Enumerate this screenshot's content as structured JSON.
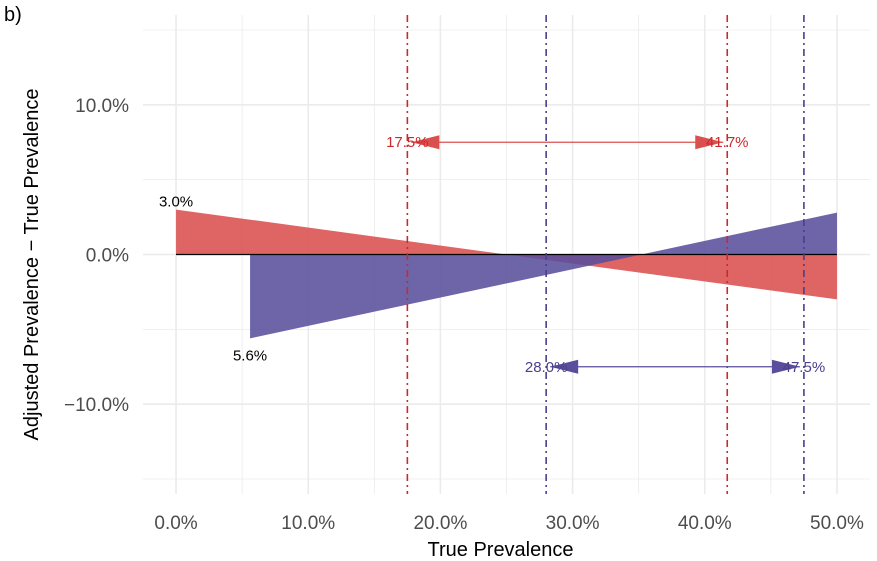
{
  "panel_label": "b)",
  "colors": {
    "red": "#d9504f",
    "purple": "#5a4e9c",
    "red_line": "#cc2a2a",
    "purple_line": "#4b3f8c",
    "grid": "#ebebeb",
    "zero_line": "#000000"
  },
  "chart_data": {
    "type": "area",
    "title": "",
    "xlabel": "True Prevalence",
    "ylabel": "Adjusted Prevalence − True Prevalence",
    "xlim": [
      -0.025,
      0.525
    ],
    "ylim": [
      -0.16,
      0.16
    ],
    "x_ticks": [
      0.0,
      0.1,
      0.2,
      0.3,
      0.4,
      0.5
    ],
    "x_tick_labels": [
      "0.0%",
      "10.0%",
      "20.0%",
      "30.0%",
      "40.0%",
      "50.0%"
    ],
    "y_ticks": [
      -0.1,
      0.0,
      0.1
    ],
    "y_tick_labels": [
      "−10.0%",
      "0.0%",
      "10.0%"
    ],
    "grid": true,
    "series": [
      {
        "color": "red",
        "x": [
          0.0,
          0.5
        ],
        "y": [
          0.03,
          -0.03
        ],
        "start_label": "3.0%",
        "interval": {
          "low": 0.175,
          "high": 0.417,
          "low_label": "17.5%",
          "high_label": "41.7%",
          "arrow_y": 0.075
        }
      },
      {
        "color": "purple",
        "x": [
          0.056,
          0.5
        ],
        "y": [
          -0.056,
          0.028
        ],
        "start_label": "5.6%",
        "interval": {
          "low": 0.28,
          "high": 0.475,
          "low_label": "28.0%",
          "high_label": "47.5%",
          "arrow_y": -0.075
        }
      }
    ]
  }
}
